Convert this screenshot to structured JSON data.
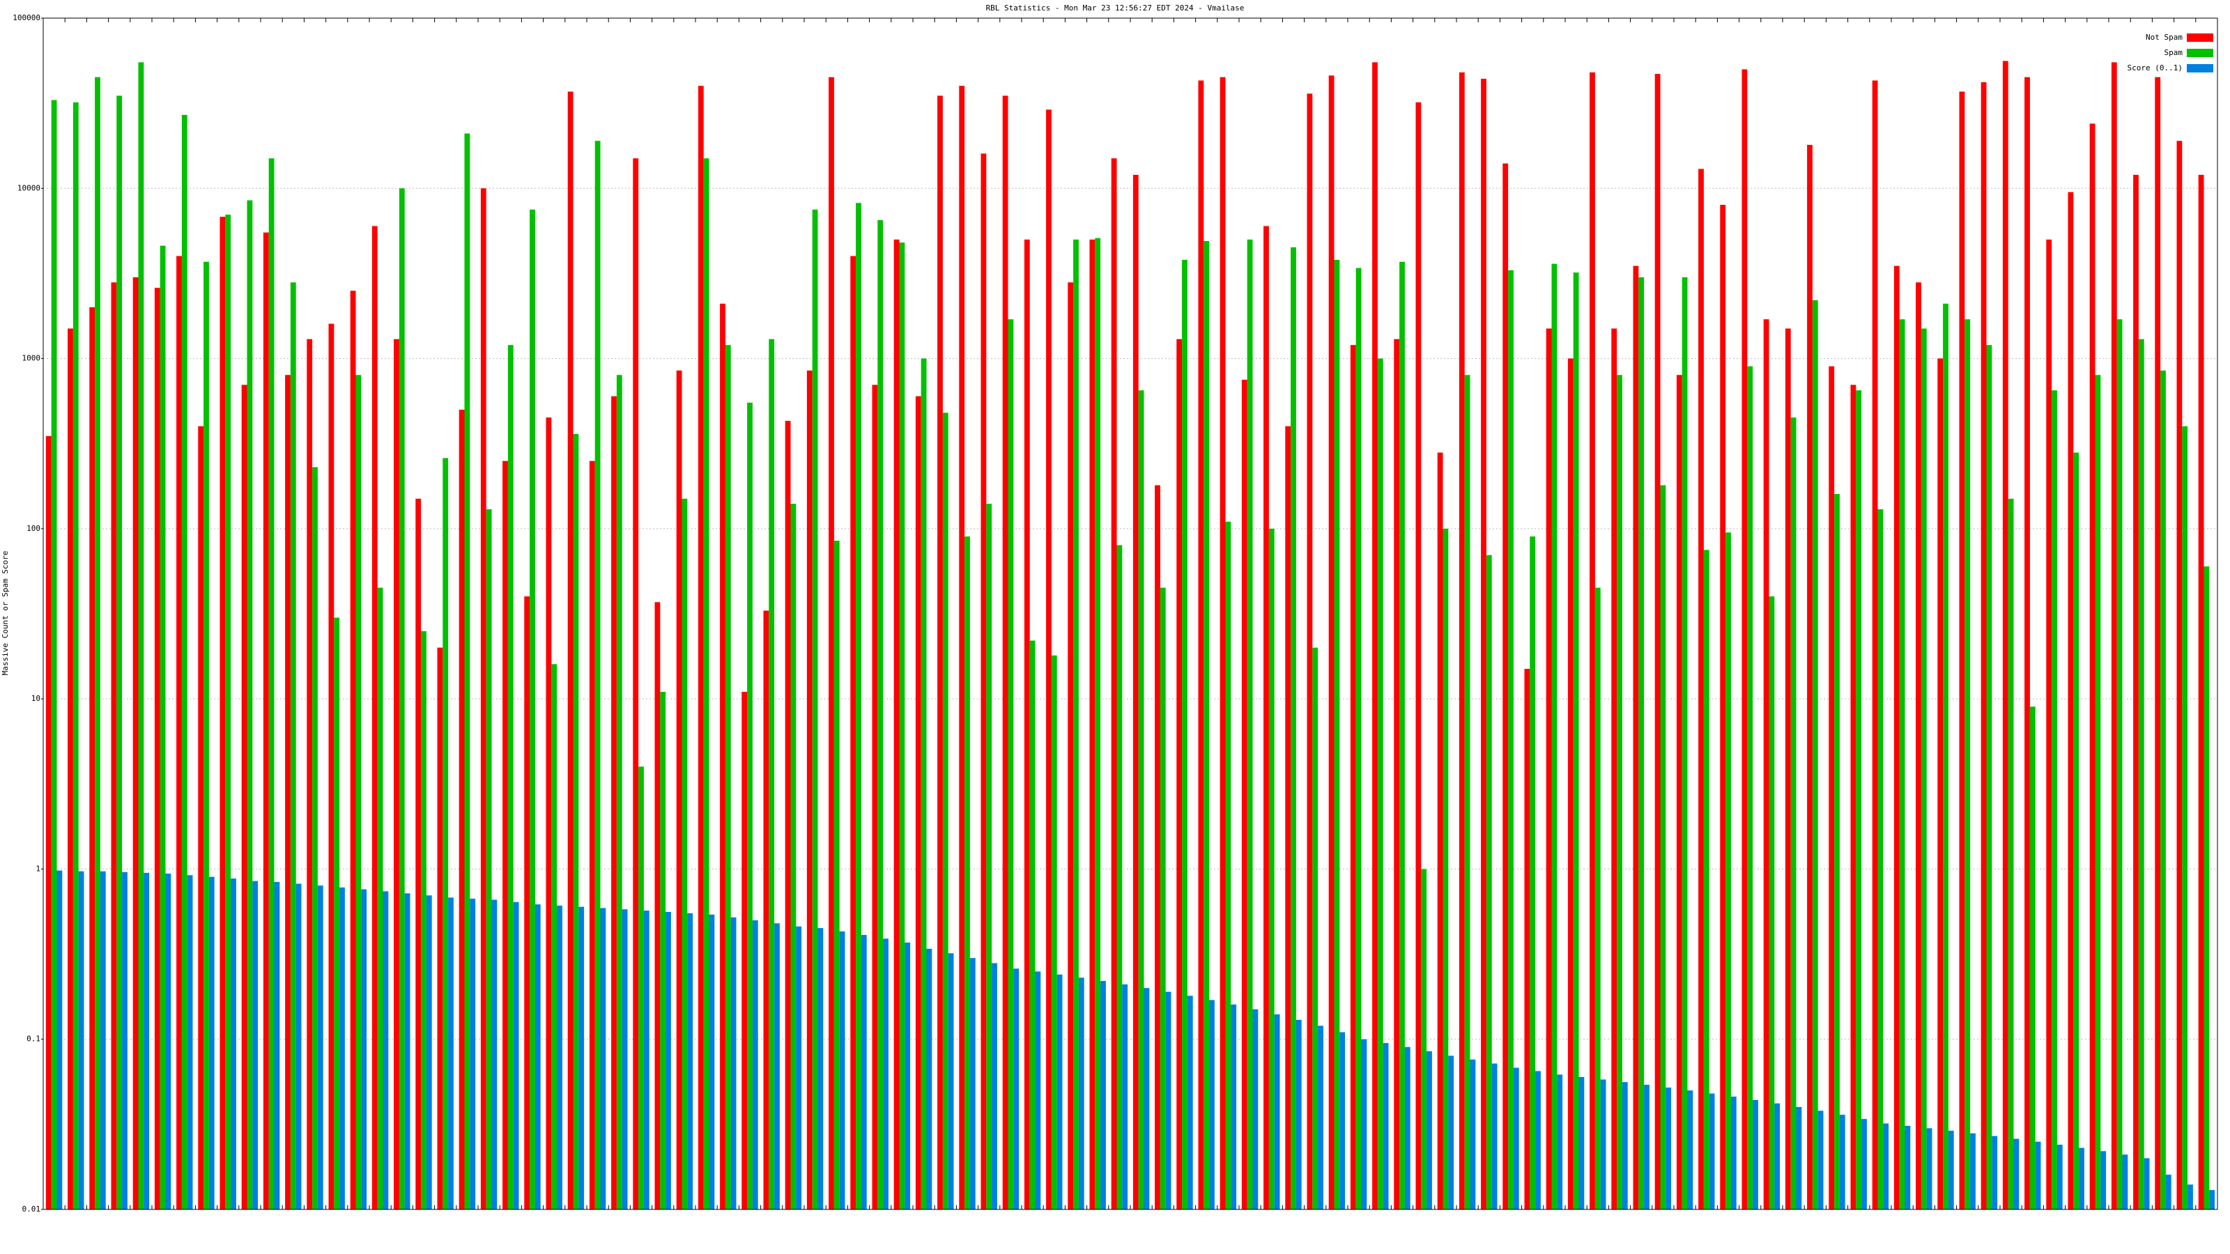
{
  "chart_data": {
    "type": "bar",
    "title": "RBL Statistics - Mon Mar 23 12:56:27 EDT 2024 - Vmailase",
    "y_label": "Massive Count or Spam Score",
    "log_scale": true,
    "grid": true,
    "legend_position": "top-right",
    "ylim": [
      0.01,
      100000
    ],
    "yticks": [
      0.01,
      0.1,
      1,
      10,
      100,
      1000,
      10000,
      100000
    ],
    "series": [
      {
        "name": "Not Spam",
        "color": "#ff0000",
        "values": [
          350,
          1500,
          2000,
          2800,
          3000,
          2600,
          4000,
          400,
          6800,
          700,
          5500,
          800,
          1300,
          1600,
          2500,
          6000,
          1300,
          150,
          20,
          500,
          10000,
          250,
          40,
          450,
          37000,
          250,
          600,
          15000,
          37,
          850,
          40000,
          2100,
          11,
          33,
          430,
          850,
          45000,
          4000,
          700,
          5000,
          600,
          35000,
          40000,
          16000,
          35000,
          5000,
          29000,
          2800,
          5000,
          15000,
          12000,
          180,
          1300,
          43000,
          45000,
          750,
          6000,
          400,
          36000,
          46000,
          1200,
          55000,
          1300,
          32000,
          280,
          48000,
          44000,
          14000,
          15,
          1500,
          1000,
          48000,
          1500,
          3500,
          47000,
          800,
          13000,
          8000,
          50000,
          1700,
          1500,
          18000,
          900,
          700,
          43000,
          3500,
          2800,
          1000,
          37000,
          42000,
          56000,
          45000,
          5000,
          9500,
          24000,
          55000,
          12000,
          45000,
          19000,
          12000
        ]
      },
      {
        "name": "Spam",
        "color": "#00c000",
        "values": [
          33000,
          32000,
          45000,
          35000,
          55000,
          4600,
          27000,
          3700,
          7000,
          8500,
          15000,
          2800,
          230,
          30,
          800,
          45,
          10000,
          25,
          260,
          21000,
          130,
          1200,
          7500,
          16,
          360,
          19000,
          800,
          4,
          11,
          150,
          15000,
          1200,
          550,
          1300,
          140,
          7500,
          85,
          8200,
          6500,
          4800,
          1000,
          480,
          90,
          140,
          1700,
          22,
          18,
          5000,
          5100,
          80,
          650,
          45,
          3800,
          4900,
          110,
          5000,
          100,
          4500,
          20,
          3800,
          3400,
          1000,
          3700,
          1,
          100,
          800,
          70,
          3300,
          90,
          3600,
          3200,
          45,
          800,
          3000,
          180,
          3000,
          75,
          95,
          900,
          40,
          450,
          2200,
          160,
          650,
          130,
          1700,
          1500,
          2100,
          1700,
          1200,
          150,
          9,
          650,
          280,
          800,
          1700,
          1300,
          850,
          400,
          60
        ]
      },
      {
        "name": "Score (0..1)",
        "color": "#0080e0",
        "values": [
          0.98,
          0.97,
          0.97,
          0.96,
          0.95,
          0.94,
          0.92,
          0.9,
          0.88,
          0.85,
          0.84,
          0.82,
          0.8,
          0.78,
          0.76,
          0.74,
          0.72,
          0.7,
          0.68,
          0.67,
          0.66,
          0.64,
          0.62,
          0.61,
          0.6,
          0.59,
          0.58,
          0.57,
          0.56,
          0.55,
          0.54,
          0.52,
          0.5,
          0.48,
          0.46,
          0.45,
          0.43,
          0.41,
          0.39,
          0.37,
          0.34,
          0.32,
          0.3,
          0.28,
          0.26,
          0.25,
          0.24,
          0.23,
          0.22,
          0.21,
          0.2,
          0.19,
          0.18,
          0.17,
          0.16,
          0.15,
          0.14,
          0.13,
          0.12,
          0.11,
          0.1,
          0.095,
          0.09,
          0.085,
          0.08,
          0.076,
          0.072,
          0.068,
          0.065,
          0.062,
          0.06,
          0.058,
          0.056,
          0.054,
          0.052,
          0.05,
          0.048,
          0.046,
          0.044,
          0.042,
          0.04,
          0.038,
          0.036,
          0.034,
          0.032,
          0.031,
          0.03,
          0.029,
          0.028,
          0.027,
          0.026,
          0.025,
          0.024,
          0.023,
          0.022,
          0.021,
          0.02,
          0.016,
          0.014,
          0.013
        ]
      }
    ]
  }
}
